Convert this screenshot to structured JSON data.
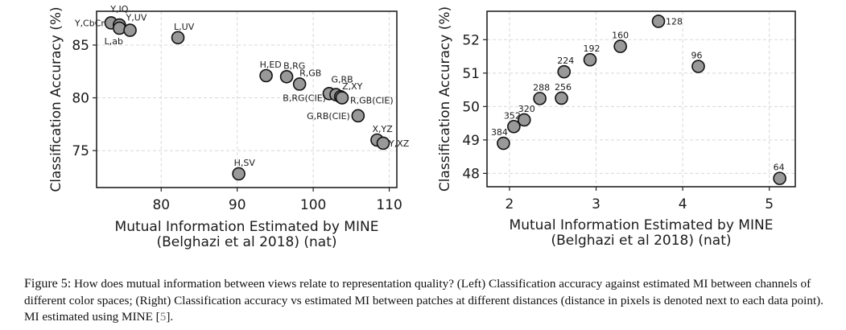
{
  "chart_data": [
    {
      "type": "scatter",
      "title": "",
      "panel": "left",
      "xlabel": "Mutual Information Estimated by MINE\n(Belghazi et al 2018) (nat)",
      "ylabel": "Classification Accuracy (%)",
      "xlim": [
        71.5,
        111
      ],
      "ylim": [
        71.5,
        88.2
      ],
      "xticks": [
        80,
        90,
        100,
        110
      ],
      "yticks": [
        75,
        80,
        85
      ],
      "grid": true,
      "points": [
        {
          "label": "Y,CbCr",
          "x": 73.4,
          "y": 87.1
        },
        {
          "label": "Y,IQ",
          "x": 74.5,
          "y": 86.9
        },
        {
          "label": "L,ab",
          "x": 74.5,
          "y": 86.6
        },
        {
          "label": "Y,UV",
          "x": 75.9,
          "y": 86.4
        },
        {
          "label": "L,UV",
          "x": 82.2,
          "y": 85.7
        },
        {
          "label": "H,ED",
          "x": 93.8,
          "y": 82.1
        },
        {
          "label": "B,RG",
          "x": 96.5,
          "y": 82.0
        },
        {
          "label": "R,GB",
          "x": 98.2,
          "y": 81.3
        },
        {
          "label": "B,RG(CIE)",
          "x": 102.1,
          "y": 80.4
        },
        {
          "label": "G,RB",
          "x": 103.0,
          "y": 80.3
        },
        {
          "label": "Z,XY",
          "x": 103.6,
          "y": 80.1
        },
        {
          "label": "R,GB(CIE)",
          "x": 103.8,
          "y": 80.0
        },
        {
          "label": "G,RB(CIE)",
          "x": 105.9,
          "y": 78.3
        },
        {
          "label": "X,YZ",
          "x": 108.4,
          "y": 76.0
        },
        {
          "label": "Y,XZ",
          "x": 109.2,
          "y": 75.7
        },
        {
          "label": "H,SV",
          "x": 90.2,
          "y": 72.8
        }
      ]
    },
    {
      "type": "scatter",
      "title": "",
      "panel": "right",
      "xlabel": "Mutual Information Estimated by MINE\n(Belghazi et al 2018) (nat)",
      "ylabel": "Classification Accuracy (%)",
      "xlim": [
        1.74,
        5.3
      ],
      "ylim": [
        47.6,
        52.85
      ],
      "xticks": [
        2,
        3,
        4,
        5
      ],
      "yticks": [
        48,
        49,
        50,
        51,
        52
      ],
      "grid": true,
      "points": [
        {
          "label": "128",
          "x": 3.72,
          "y": 52.55
        },
        {
          "label": "160",
          "x": 3.28,
          "y": 51.8
        },
        {
          "label": "96",
          "x": 4.18,
          "y": 51.2
        },
        {
          "label": "192",
          "x": 2.93,
          "y": 51.4
        },
        {
          "label": "224",
          "x": 2.63,
          "y": 51.04
        },
        {
          "label": "288",
          "x": 2.35,
          "y": 50.24
        },
        {
          "label": "256",
          "x": 2.6,
          "y": 50.25
        },
        {
          "label": "320",
          "x": 2.17,
          "y": 49.6
        },
        {
          "label": "352",
          "x": 2.05,
          "y": 49.4
        },
        {
          "label": "384",
          "x": 1.93,
          "y": 48.9
        },
        {
          "label": "64",
          "x": 5.12,
          "y": 47.85
        }
      ]
    }
  ],
  "caption": {
    "figure_label": "Figure 5:",
    "text_before_cite": " How does mutual information between views relate to representation quality? (Left) Classification accuracy against estimated MI between channels of different color spaces; (Right) Classification accuracy vs estimated MI between patches at different distances (distance in pixels is denoted next to each data point). MI estimated using MINE [",
    "cite": "5",
    "text_after_cite": "]."
  }
}
